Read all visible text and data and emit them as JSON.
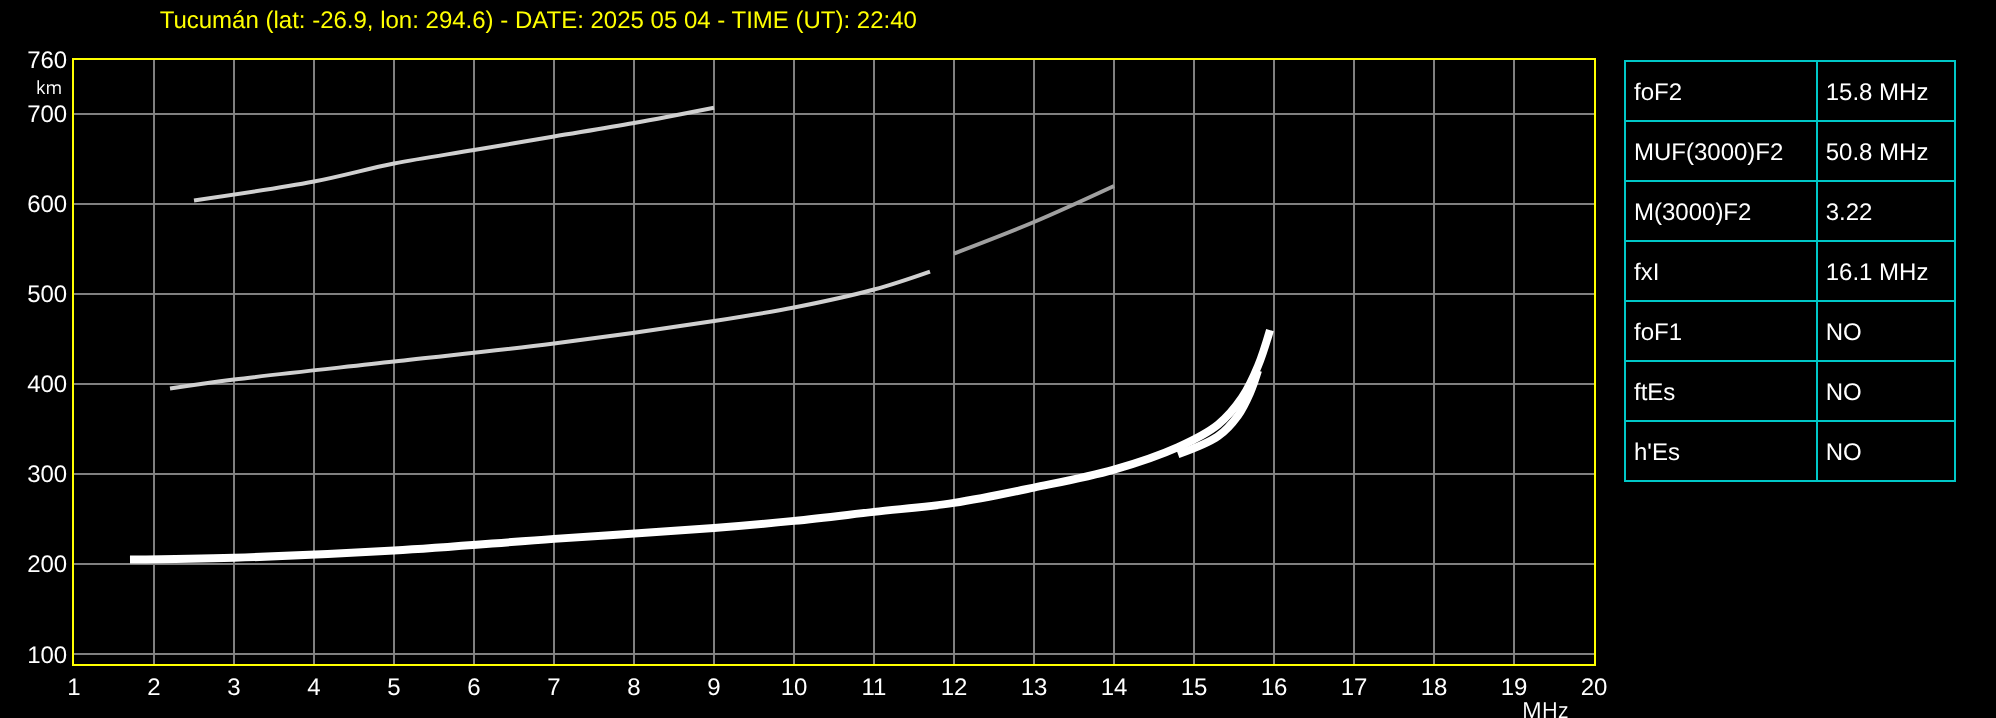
{
  "chart_data": [
    {
      "type": "line",
      "title": "Tucumán (lat: -26.9, lon: 294.6) - DATE: 2025 05 04 - TIME (UT): 22:40",
      "xlabel": "MHz",
      "ylabel": "km",
      "xlim": [
        1,
        20
      ],
      "xticks": [
        1,
        2,
        3,
        4,
        5,
        6,
        7,
        8,
        9,
        10,
        11,
        12,
        13,
        14,
        15,
        16,
        17,
        18,
        19,
        20
      ],
      "ylim": [
        89,
        760
      ],
      "yticks": [
        100,
        200,
        300,
        400,
        500,
        600,
        700,
        760
      ],
      "grid": true,
      "marker": "none",
      "line_style": "solid",
      "series": [
        {
          "color": "#ffffff",
          "x": [
            1.7,
            3,
            5,
            7,
            9,
            10,
            11,
            12,
            13,
            14,
            14.8,
            15.3,
            15.6,
            15.8,
            15.95
          ],
          "values": [
            205,
            207,
            215,
            228,
            240,
            248,
            258,
            268,
            285,
            305,
            330,
            355,
            385,
            420,
            460
          ]
        },
        {
          "color": "#ffffff",
          "x": [
            14.8,
            15.3,
            15.55,
            15.7,
            15.8
          ],
          "values": [
            322,
            342,
            365,
            390,
            415
          ]
        },
        {
          "color": "#d0d0d0",
          "x": [
            2.2,
            3,
            5,
            7,
            9,
            10,
            11,
            11.7
          ],
          "values": [
            395,
            405,
            425,
            445,
            470,
            485,
            505,
            525
          ]
        },
        {
          "color": "#a0a0a0",
          "x": [
            12,
            13,
            14
          ],
          "values": [
            545,
            580,
            620
          ]
        },
        {
          "color": "#d0d0d0",
          "x": [
            2.5,
            4,
            5,
            6,
            7,
            8,
            9
          ],
          "values": [
            604,
            625,
            645,
            660,
            675,
            690,
            707
          ]
        }
      ]
    },
    {
      "type": "other",
      "categories": [
        "foF2",
        "MUF(3000)F2",
        "M(3000)F2",
        "fxI",
        "foF1",
        "ftEs",
        "h'Es"
      ],
      "value_labels": [
        "15.8 MHz",
        "50.8 MHz",
        "3.22",
        "16.1 MHz",
        "NO",
        "NO",
        "NO"
      ]
    }
  ]
}
